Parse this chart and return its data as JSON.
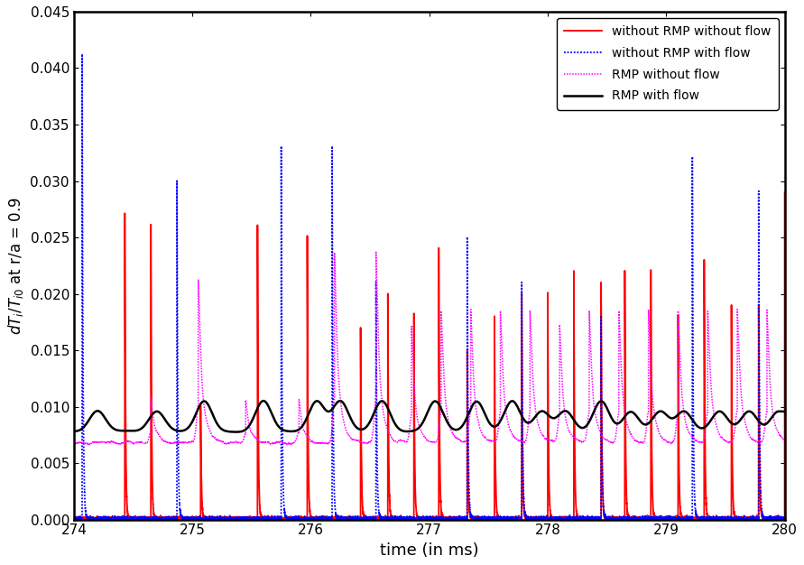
{
  "title": "",
  "xlabel": "time (in ms)",
  "ylabel": "dT_i/T_i0 at r/a = 0.9",
  "xlim": [
    274,
    280
  ],
  "ylim": [
    0,
    0.045
  ],
  "yticks": [
    0,
    0.005,
    0.01,
    0.015,
    0.02,
    0.025,
    0.03,
    0.035,
    0.04,
    0.045
  ],
  "xticks": [
    274,
    275,
    276,
    277,
    278,
    279,
    280
  ],
  "legend": [
    {
      "label": "without RMP without flow",
      "color": "#ff0000",
      "linestyle": "solid",
      "linewidth": 1.3
    },
    {
      "label": "without RMP with flow",
      "color": "#0000ff",
      "linestyle": "dotted",
      "linewidth": 1.3
    },
    {
      "label": "RMP without flow",
      "color": "#ff00ff",
      "linestyle": "dotted",
      "linewidth": 1.1
    },
    {
      "label": "RMP with flow",
      "color": "#000000",
      "linestyle": "solid",
      "linewidth": 1.8
    }
  ],
  "background_color": "#ffffff",
  "figsize": [
    8.91,
    6.26
  ],
  "dpi": 100,
  "red_elm_times": [
    274.43,
    274.65,
    275.07,
    275.55,
    275.97,
    276.42,
    276.65,
    276.87,
    277.08,
    277.32,
    277.55,
    277.78,
    278.0,
    278.22,
    278.45,
    278.65,
    278.87,
    279.1,
    279.32,
    279.55,
    279.78,
    280.0
  ],
  "red_elm_heights": [
    0.027,
    0.026,
    0.01,
    0.026,
    0.025,
    0.017,
    0.02,
    0.018,
    0.024,
    0.015,
    0.018,
    0.02,
    0.02,
    0.022,
    0.021,
    0.022,
    0.022,
    0.018,
    0.023,
    0.019,
    0.019,
    0.029
  ],
  "blue_elm_times": [
    274.07,
    274.87,
    275.75,
    276.18,
    276.55,
    277.32,
    277.78,
    278.45,
    279.22,
    279.78
  ],
  "blue_elm_heights": [
    0.041,
    0.03,
    0.033,
    0.033,
    0.021,
    0.025,
    0.021,
    0.018,
    0.032,
    0.029
  ],
  "magenta_base": 0.0068,
  "magenta_noise": 0.0008,
  "magenta_bump_times": [
    274.65,
    275.05,
    275.45,
    275.9,
    276.2,
    276.55,
    276.85,
    277.1,
    277.35,
    277.6,
    277.85,
    278.1,
    278.35,
    278.6,
    278.85,
    279.1,
    279.35,
    279.6,
    279.85
  ],
  "magenta_bump_heights": [
    0.003,
    0.011,
    0.003,
    0.003,
    0.013,
    0.013,
    0.008,
    0.009,
    0.009,
    0.009,
    0.009,
    0.008,
    0.009,
    0.009,
    0.009,
    0.009,
    0.009,
    0.009,
    0.009
  ],
  "black_base": 0.0078,
  "black_noise": 0.0005,
  "black_bump_times": [
    274.2,
    274.7,
    275.1,
    275.6,
    276.05,
    276.25,
    276.6,
    277.05,
    277.4,
    277.7,
    277.95,
    278.15,
    278.45,
    278.7,
    278.95,
    279.15,
    279.45,
    279.7,
    279.95
  ],
  "black_bump_heights": [
    0.002,
    0.002,
    0.003,
    0.003,
    0.003,
    0.003,
    0.003,
    0.003,
    0.003,
    0.003,
    0.002,
    0.002,
    0.003,
    0.002,
    0.002,
    0.002,
    0.002,
    0.002,
    0.002
  ]
}
